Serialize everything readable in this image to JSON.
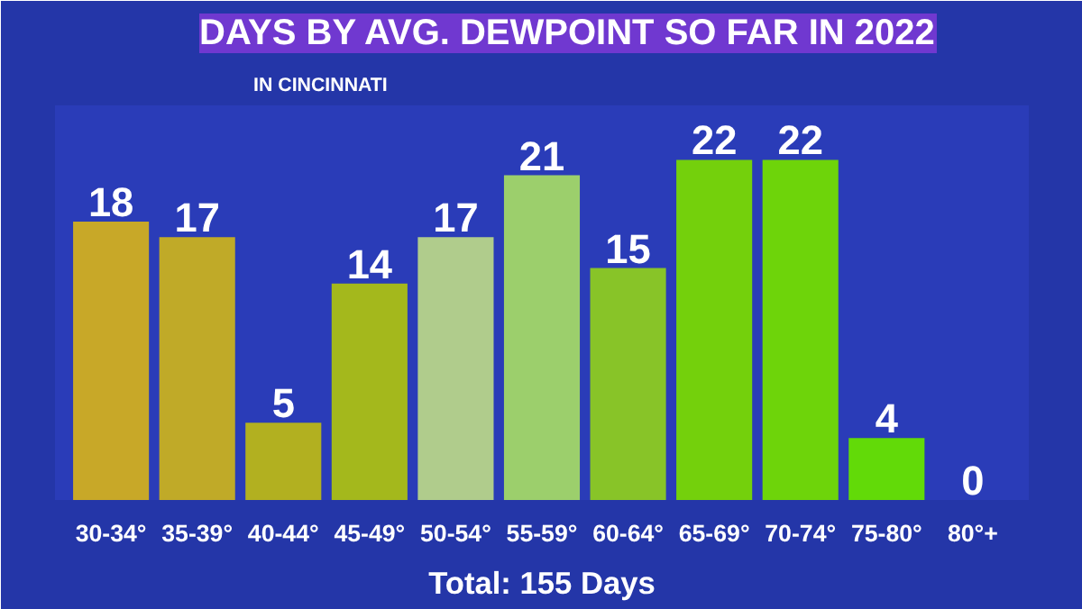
{
  "chart_data": {
    "type": "bar",
    "title": "DAYS BY AVG. DEWPOINT SO FAR IN 2022",
    "subtitle": "IN CINCINNATI",
    "categories": [
      "30-34°",
      "35-39°",
      "40-44°",
      "45-49°",
      "50-54°",
      "55-59°",
      "60-64°",
      "65-69°",
      "70-74°",
      "75-80°",
      "80°+"
    ],
    "values": [
      18,
      17,
      5,
      14,
      17,
      21,
      15,
      22,
      22,
      4,
      0
    ],
    "colors": [
      "#c8a828",
      "#c0aa28",
      "#b2b020",
      "#a4b81c",
      "#b0cc8c",
      "#9ccf6c",
      "#88c428",
      "#74d00c",
      "#6ed40a",
      "#62da08",
      "#58e010"
    ],
    "data_labels": true,
    "grid": false,
    "annotations": [
      "Total: 155 Days"
    ]
  }
}
